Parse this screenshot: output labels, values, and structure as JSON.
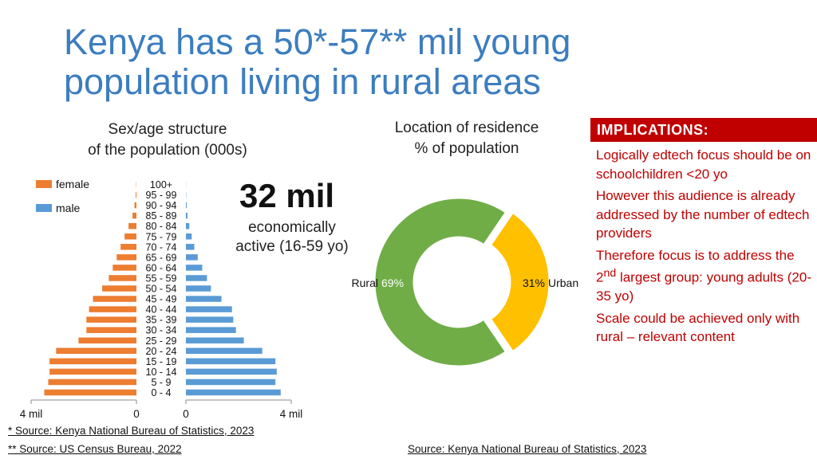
{
  "title": "Kenya has a 50*-57** mil young population living in rural areas",
  "highlight": {
    "value": "32 mil",
    "caption_line1": "economically",
    "caption_line2": "active (16-59 yo)"
  },
  "implications": {
    "header": "IMPLICATIONS:",
    "items": [
      "Logically edtech focus should be on schoolchildren <20 yo",
      "However this audience is already addressed by the number of edtech providers",
      "Therefore focus is to address the 2nd largest group: young adults (20-35 yo)",
      "Scale could be achieved only with rural – relevant content"
    ]
  },
  "sources": {
    "left_1": "* Source: Kenya National Bureau of Statistics, 2023",
    "left_2": "** Source: US Census Bureau, 2022",
    "right": "Source: Kenya National Bureau of Statistics, 2023"
  },
  "colors": {
    "female": "#ed7d31",
    "male": "#5b9bd5",
    "rural": "#70ad47",
    "urban": "#ffc000",
    "title": "#3c7dbf",
    "implications": "#c00000"
  },
  "chart_data": [
    {
      "type": "bar",
      "subtype": "population-pyramid",
      "title_line1": "Sex/age structure",
      "title_line2": "of the population (000s)",
      "categories": [
        "0 - 4",
        "5 - 9",
        "10 - 14",
        "15 - 19",
        "20 - 24",
        "25 - 29",
        "30 - 34",
        "35 - 39",
        "40 - 44",
        "45 - 49",
        "50 - 54",
        "55 - 59",
        "60 - 64",
        "65 - 69",
        "70 - 74",
        "75 - 79",
        "80 - 84",
        "85 - 89",
        "90 - 94",
        "95 - 99",
        "100+"
      ],
      "series": [
        {
          "name": "female",
          "values": [
            3500,
            3350,
            3300,
            3300,
            3050,
            2200,
            1900,
            1900,
            1800,
            1650,
            1300,
            1050,
            900,
            750,
            600,
            450,
            300,
            150,
            75,
            30,
            10
          ]
        },
        {
          "name": "male",
          "values": [
            3600,
            3400,
            3450,
            3400,
            2900,
            2200,
            1900,
            1800,
            1750,
            1350,
            950,
            800,
            620,
            450,
            320,
            220,
            130,
            60,
            30,
            10,
            5
          ]
        }
      ],
      "xlim": [
        0,
        4000
      ],
      "tick_labels": [
        "4 mil",
        "0",
        "0",
        "4 mil"
      ],
      "legend": "top-left"
    },
    {
      "type": "pie",
      "subtype": "donut",
      "title_line1": "Location of residence",
      "title_line2": "% of population",
      "slices": [
        {
          "label": "Rural",
          "value": 69,
          "value_label": "69%"
        },
        {
          "label": "Urban",
          "value": 31,
          "value_label": "31%"
        }
      ]
    }
  ]
}
